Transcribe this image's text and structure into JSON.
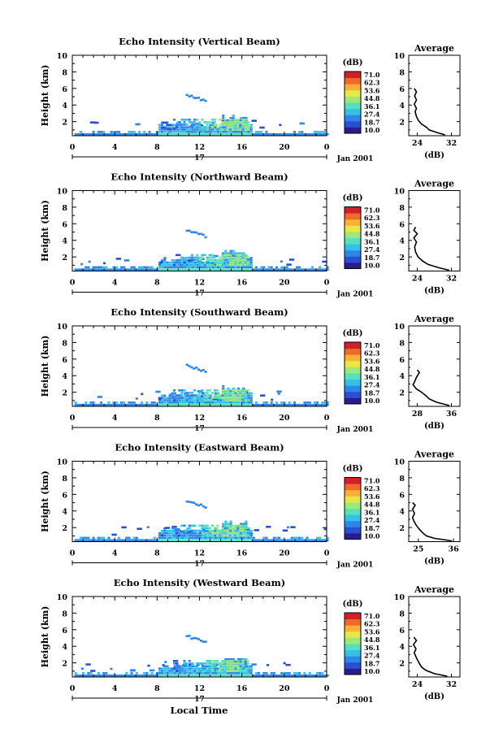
{
  "figure": {
    "xlabel": "Local Time",
    "date_label": "Jan 2001",
    "day_label": "17",
    "colorbar_unit": "(dB)",
    "colorbar_ticks": [
      "71.0",
      "62.3",
      "53.6",
      "44.8",
      "36.1",
      "27.4",
      "18.7",
      "10.0"
    ],
    "colorbar_colors": [
      "#2b1b8c",
      "#2a4fd0",
      "#2f86e8",
      "#35c0e8",
      "#56e0c0",
      "#9ee87a",
      "#e6e84a",
      "#f7b136",
      "#f06b2a",
      "#d0202a"
    ]
  },
  "chart_data": [
    {
      "type": "heatmap",
      "title": "Echo Intensity (Vertical Beam)",
      "ylabel": "Height (km)",
      "xlabel": "Local Time",
      "x_ticks": [
        "0",
        "4",
        "8",
        "12",
        "16",
        "20",
        "0"
      ],
      "y_ticks": [
        "2",
        "4",
        "6",
        "8",
        "10"
      ],
      "xlim": [
        0,
        24
      ],
      "ylim": [
        0.3,
        10
      ],
      "clim": [
        10.0,
        71.0
      ],
      "profile": {
        "title": "Average",
        "xlabel": "(dB)",
        "x_ticks": [
          "24",
          "32"
        ],
        "xlim": [
          22,
          34
        ],
        "points": [
          [
            30.5,
            0.4
          ],
          [
            28.5,
            0.7
          ],
          [
            26.8,
            1.0
          ],
          [
            26.2,
            1.3
          ],
          [
            25.0,
            1.7
          ],
          [
            24.3,
            2.1
          ],
          [
            23.8,
            2.6
          ],
          [
            23.5,
            3.2
          ],
          [
            23.8,
            3.6
          ],
          [
            23.3,
            4.1
          ],
          [
            23.8,
            4.6
          ],
          [
            23.4,
            5.1
          ],
          [
            23.8,
            5.6
          ],
          [
            23.3,
            6.0
          ]
        ]
      }
    },
    {
      "type": "heatmap",
      "title": "Echo Intensity (Northward Beam)",
      "ylabel": "Height (km)",
      "xlabel": "Local Time",
      "x_ticks": [
        "0",
        "4",
        "8",
        "12",
        "16",
        "20",
        "0"
      ],
      "y_ticks": [
        "2",
        "4",
        "6",
        "8",
        "10"
      ],
      "xlim": [
        0,
        24
      ],
      "ylim": [
        0.3,
        10
      ],
      "clim": [
        10.0,
        71.0
      ],
      "profile": {
        "title": "Average",
        "xlabel": "(dB)",
        "x_ticks": [
          "24",
          "32"
        ],
        "xlim": [
          22,
          34
        ],
        "points": [
          [
            31.5,
            0.4
          ],
          [
            29.0,
            0.7
          ],
          [
            26.5,
            1.1
          ],
          [
            25.3,
            1.5
          ],
          [
            24.2,
            2.0
          ],
          [
            23.6,
            2.6
          ],
          [
            23.4,
            3.2
          ],
          [
            23.8,
            3.8
          ],
          [
            23.2,
            4.3
          ],
          [
            24.0,
            4.8
          ],
          [
            23.2,
            5.2
          ],
          [
            23.6,
            5.6
          ]
        ]
      }
    },
    {
      "type": "heatmap",
      "title": "Echo Intensity (Southward Beam)",
      "ylabel": "Height (km)",
      "xlabel": "Local Time",
      "x_ticks": [
        "0",
        "4",
        "8",
        "12",
        "16",
        "20",
        "0"
      ],
      "y_ticks": [
        "2",
        "4",
        "6",
        "8",
        "10"
      ],
      "xlim": [
        0,
        24
      ],
      "ylim": [
        0.3,
        10
      ],
      "clim": [
        10.0,
        71.0
      ],
      "profile": {
        "title": "Average",
        "xlabel": "(dB)",
        "x_ticks": [
          "28",
          "36"
        ],
        "xlim": [
          26,
          38
        ],
        "points": [
          [
            35.5,
            0.4
          ],
          [
            32.5,
            0.8
          ],
          [
            30.8,
            1.2
          ],
          [
            30.0,
            1.6
          ],
          [
            29.0,
            2.0
          ],
          [
            27.8,
            2.4
          ],
          [
            27.0,
            2.9
          ],
          [
            27.4,
            3.3
          ],
          [
            27.8,
            3.8
          ],
          [
            28.5,
            4.4
          ],
          [
            28.0,
            4.7
          ]
        ]
      }
    },
    {
      "type": "heatmap",
      "title": "Echo Intensity (Eastward Beam)",
      "ylabel": "Height (km)",
      "xlabel": "Local Time",
      "x_ticks": [
        "0",
        "4",
        "8",
        "12",
        "16",
        "20",
        "0"
      ],
      "y_ticks": [
        "2",
        "4",
        "6",
        "8",
        "10"
      ],
      "xlim": [
        0,
        24
      ],
      "ylim": [
        0.3,
        10
      ],
      "clim": [
        10.0,
        71.0
      ],
      "profile": {
        "title": "Average",
        "xlabel": "(dB)",
        "x_ticks": [
          "25",
          "36"
        ],
        "xlim": [
          22,
          38
        ],
        "points": [
          [
            35.5,
            0.4
          ],
          [
            30.0,
            0.7
          ],
          [
            27.5,
            1.0
          ],
          [
            26.3,
            1.4
          ],
          [
            25.3,
            1.8
          ],
          [
            24.3,
            2.3
          ],
          [
            23.6,
            2.8
          ],
          [
            23.2,
            3.2
          ],
          [
            23.8,
            3.7
          ],
          [
            23.2,
            4.2
          ],
          [
            24.0,
            4.7
          ],
          [
            23.2,
            5.0
          ]
        ]
      }
    },
    {
      "type": "heatmap",
      "title": "Echo Intensity (Westward Beam)",
      "ylabel": "Height (km)",
      "xlabel": "Local Time",
      "x_ticks": [
        "0",
        "4",
        "8",
        "12",
        "16",
        "20",
        "0"
      ],
      "y_ticks": [
        "2",
        "4",
        "6",
        "8",
        "10"
      ],
      "xlim": [
        0,
        24
      ],
      "ylim": [
        0.3,
        10
      ],
      "clim": [
        10.0,
        71.0
      ],
      "profile": {
        "title": "Average",
        "xlabel": "(dB)",
        "x_ticks": [
          "24",
          "32"
        ],
        "xlim": [
          22,
          34
        ],
        "points": [
          [
            31.0,
            0.4
          ],
          [
            28.0,
            0.7
          ],
          [
            26.0,
            1.1
          ],
          [
            25.0,
            1.5
          ],
          [
            24.4,
            2.0
          ],
          [
            23.8,
            2.6
          ],
          [
            23.3,
            3.2
          ],
          [
            23.7,
            3.7
          ],
          [
            23.1,
            4.2
          ],
          [
            23.8,
            4.7
          ],
          [
            23.2,
            5.1
          ]
        ]
      }
    }
  ]
}
